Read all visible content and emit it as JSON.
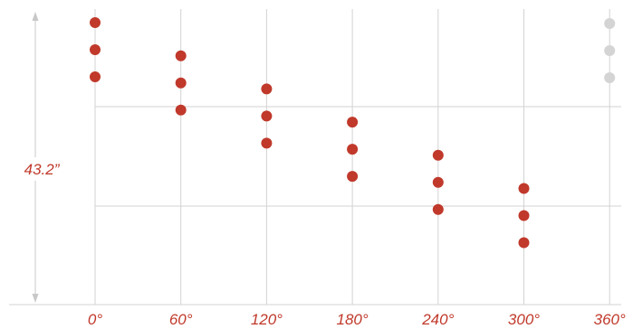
{
  "colors": {
    "dot": "#c0392b",
    "dot_faded": "#d4d4d4",
    "label": "#c0392b",
    "grid": "#d3d3d3",
    "dimension_line": "#c8c8c8"
  },
  "dimension": {
    "label": "43.2”"
  },
  "angle_ticks": [
    {
      "label": "0°",
      "value": 0
    },
    {
      "label": "60°",
      "value": 60
    },
    {
      "label": "120°",
      "value": 120
    },
    {
      "label": "180°",
      "value": 180
    },
    {
      "label": "240°",
      "value": 240
    },
    {
      "label": "300°",
      "value": 300
    },
    {
      "label": "360°",
      "value": 360
    }
  ],
  "dot_columns": [
    {
      "angle": 0,
      "faded": false
    },
    {
      "angle": 60,
      "faded": false
    },
    {
      "angle": 120,
      "faded": false
    },
    {
      "angle": 180,
      "faded": false
    },
    {
      "angle": 240,
      "faded": false
    },
    {
      "angle": 300,
      "faded": false
    },
    {
      "angle": 360,
      "faded": true
    }
  ]
}
